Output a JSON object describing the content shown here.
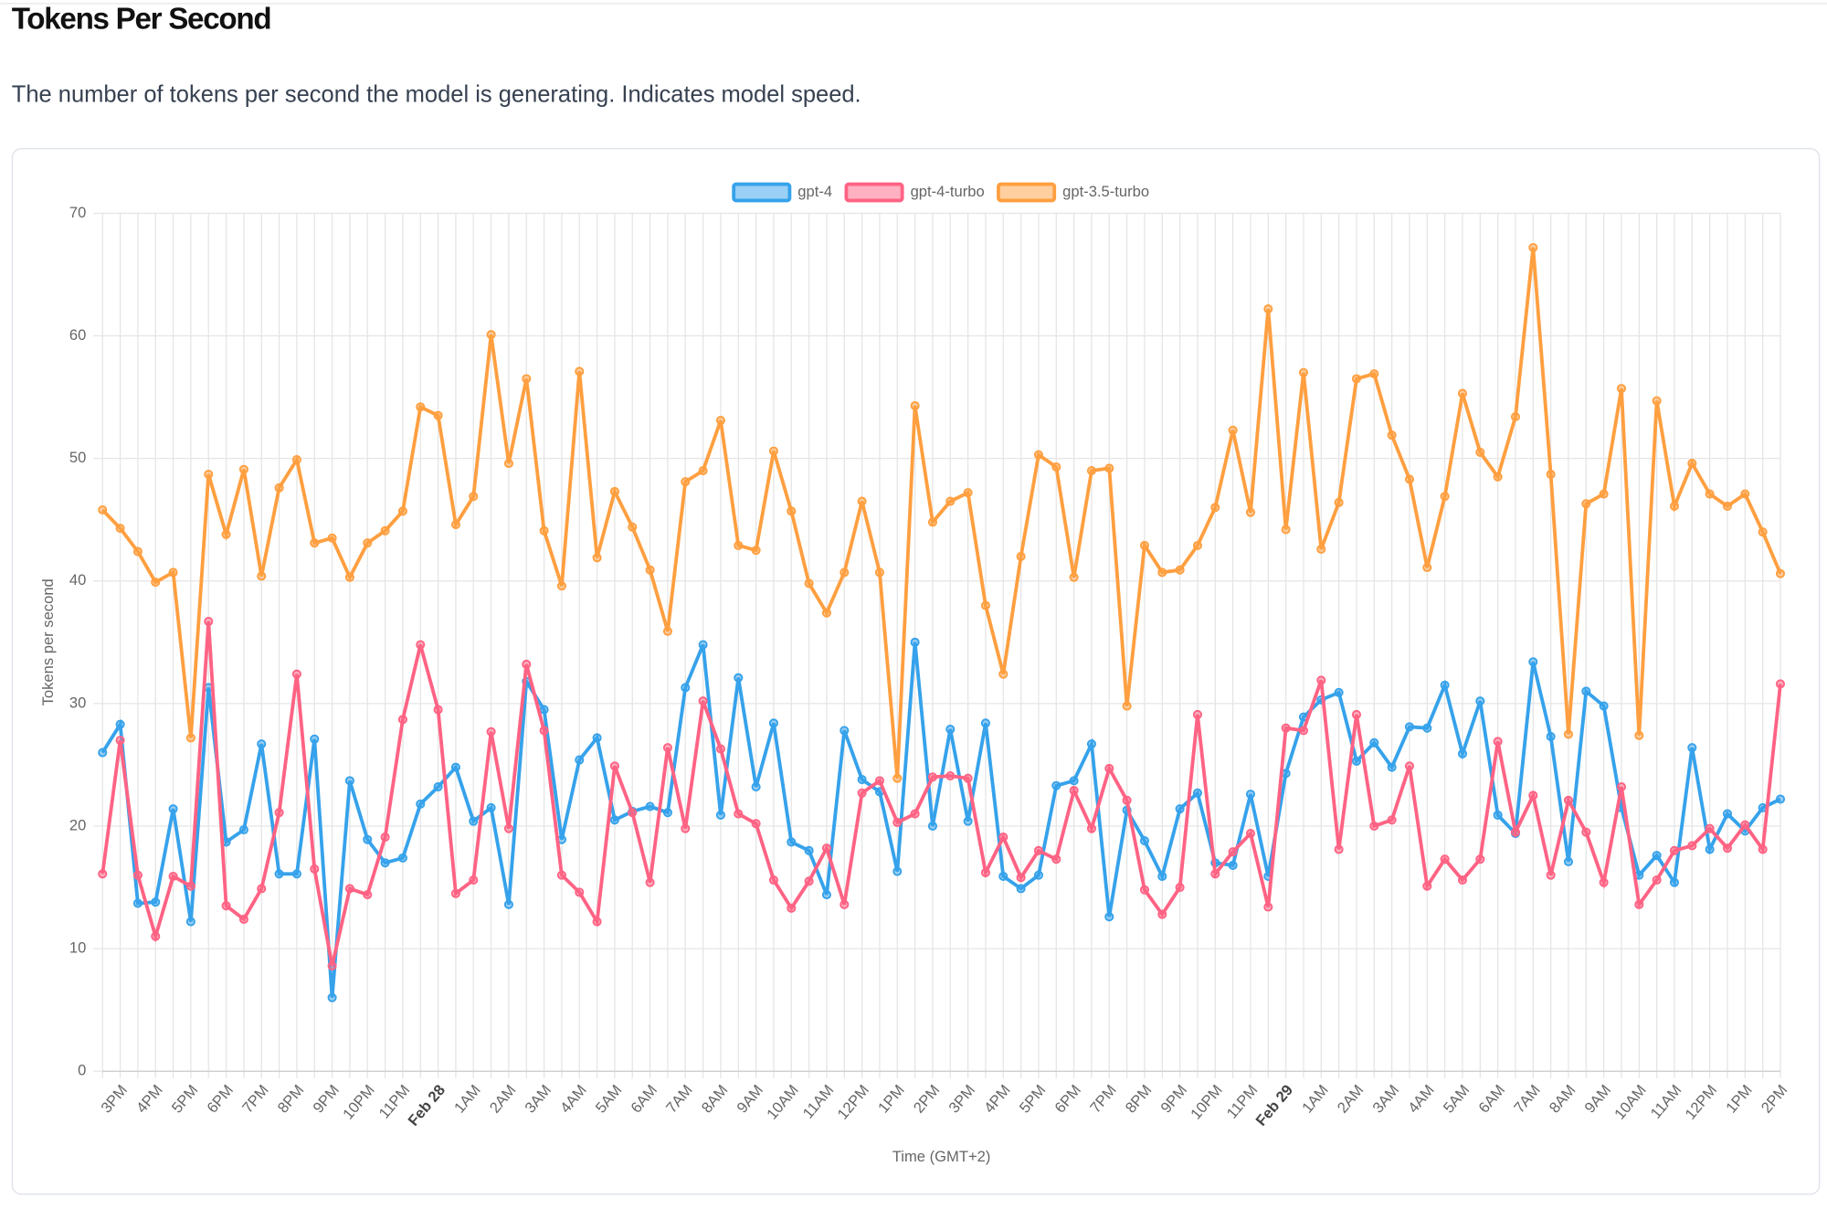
{
  "header": {
    "title": "Tokens Per Second",
    "subtitle": "The number of tokens per second the model is generating. Indicates model speed."
  },
  "chart_data": {
    "type": "line",
    "x_label": "Time (GMT+2)",
    "y_label": "Tokens per second",
    "categories": [
      null,
      "3PM",
      null,
      "4PM",
      null,
      "5PM",
      null,
      "6PM",
      null,
      "7PM",
      null,
      "8PM",
      null,
      "9PM",
      null,
      "10PM",
      null,
      "11PM",
      null,
      "Feb 28",
      null,
      "1AM",
      null,
      "2AM",
      null,
      "3AM",
      null,
      "4AM",
      null,
      "5AM",
      null,
      "6AM",
      null,
      "7AM",
      null,
      "8AM",
      null,
      "9AM",
      null,
      "10AM",
      null,
      "11AM",
      null,
      "12PM",
      null,
      "1PM",
      null,
      "2PM",
      null,
      "3PM",
      null,
      "4PM",
      null,
      "5PM",
      null,
      "6PM",
      null,
      "7PM",
      null,
      "8PM",
      null,
      "9PM",
      null,
      "10PM",
      null,
      "11PM",
      null,
      "Feb 29",
      null,
      "1AM",
      null,
      "2AM",
      null,
      "3AM",
      null,
      "4AM",
      null,
      "5AM",
      null,
      "6AM",
      null,
      "7AM",
      null,
      "8AM",
      null,
      "9AM",
      null,
      "10AM",
      null,
      "11AM",
      null,
      "12PM",
      null,
      "1PM",
      null,
      "2PM"
    ],
    "series": [
      {
        "name": "gpt-4",
        "color": "#36a2eb",
        "values": [
          26.0,
          28.3,
          13.7,
          13.8,
          21.4,
          12.2,
          31.3,
          18.7,
          19.7,
          26.7,
          16.1,
          16.1,
          27.1,
          6.0,
          23.7,
          18.9,
          17.0,
          17.4,
          21.8,
          23.2,
          24.8,
          20.4,
          21.5,
          13.6,
          31.8,
          29.5,
          18.9,
          25.4,
          27.2,
          20.5,
          21.2,
          21.6,
          21.1,
          31.3,
          34.8,
          20.9,
          32.1,
          23.2,
          28.4,
          18.7,
          18.0,
          14.4,
          27.8,
          23.8,
          22.8,
          16.3,
          35.0,
          20.0,
          27.9,
          20.4,
          28.4,
          15.9,
          14.9,
          16.0,
          23.3,
          23.7,
          26.7,
          12.6,
          21.3,
          18.8,
          15.9,
          21.4,
          22.7,
          17.0,
          16.8,
          22.6,
          15.9,
          24.3,
          28.9,
          30.3,
          30.9,
          25.3,
          26.8,
          24.8,
          28.1,
          28.0,
          31.5,
          25.9,
          30.2,
          20.9,
          19.4,
          33.4,
          27.3,
          17.1,
          31.0,
          29.8,
          21.5,
          16.0,
          17.6,
          15.4,
          26.4,
          18.1,
          21.0,
          19.6,
          21.5,
          22.2
        ]
      },
      {
        "name": "gpt-4-turbo",
        "color": "#ff6384",
        "values": [
          16.1,
          27.0,
          16.0,
          11.0,
          15.9,
          15.1,
          36.7,
          13.5,
          12.4,
          14.9,
          21.1,
          32.4,
          16.5,
          8.6,
          14.9,
          14.4,
          19.1,
          28.7,
          34.8,
          29.5,
          14.5,
          15.6,
          27.7,
          19.8,
          33.2,
          27.8,
          16.0,
          14.6,
          12.2,
          24.9,
          21.1,
          15.4,
          26.4,
          19.8,
          30.2,
          26.3,
          21.0,
          20.2,
          15.6,
          13.3,
          15.5,
          18.2,
          13.6,
          22.7,
          23.7,
          20.3,
          21.0,
          24.0,
          24.1,
          23.9,
          16.2,
          19.1,
          15.8,
          18.0,
          17.3,
          22.9,
          19.8,
          24.7,
          22.1,
          14.8,
          12.8,
          15.0,
          29.1,
          16.1,
          17.9,
          19.4,
          13.4,
          28.0,
          27.8,
          31.9,
          18.1,
          29.1,
          20.0,
          20.5,
          24.9,
          15.1,
          17.3,
          15.6,
          17.3,
          26.9,
          19.5,
          22.5,
          16.0,
          22.1,
          19.5,
          15.4,
          23.2,
          13.6,
          15.6,
          18.0,
          18.4,
          19.8,
          18.2,
          20.1,
          18.1,
          31.6
        ]
      },
      {
        "name": "gpt-3.5-turbo",
        "color": "#ff9f40",
        "values": [
          45.8,
          44.3,
          42.4,
          39.9,
          40.7,
          27.2,
          48.7,
          43.8,
          49.1,
          40.4,
          47.6,
          49.9,
          43.1,
          43.5,
          40.3,
          43.1,
          44.1,
          45.7,
          54.2,
          53.5,
          44.6,
          46.9,
          60.1,
          49.6,
          56.5,
          44.1,
          39.6,
          57.1,
          41.9,
          47.3,
          44.4,
          40.9,
          35.9,
          48.1,
          49.0,
          53.1,
          42.9,
          42.5,
          50.6,
          45.7,
          39.8,
          37.4,
          40.7,
          46.5,
          40.7,
          23.9,
          54.3,
          44.8,
          46.5,
          47.2,
          38.0,
          32.4,
          42.0,
          50.3,
          49.3,
          40.3,
          49.0,
          49.2,
          29.8,
          42.9,
          40.7,
          40.9,
          42.9,
          46.0,
          52.3,
          45.6,
          62.2,
          44.2,
          57.0,
          42.6,
          46.4,
          56.5,
          56.9,
          51.9,
          48.3,
          41.1,
          46.9,
          55.3,
          50.5,
          48.5,
          53.4,
          67.2,
          48.7,
          27.5,
          46.3,
          47.1,
          55.7,
          27.4,
          54.7,
          46.1,
          49.6,
          47.1,
          46.1,
          47.1,
          44.0,
          40.6
        ]
      }
    ],
    "ylim": [
      0,
      70
    ],
    "yticks": [
      0,
      10,
      20,
      30,
      40,
      50,
      60,
      70
    ],
    "grid": true,
    "legend": "top"
  }
}
